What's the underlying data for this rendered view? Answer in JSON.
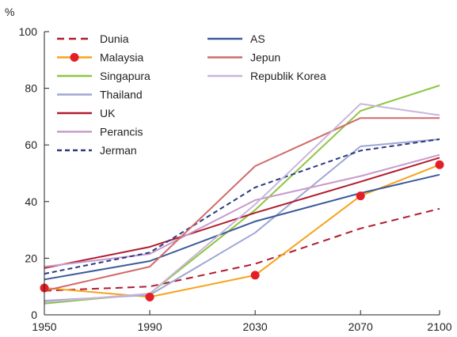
{
  "chart_data": {
    "type": "line",
    "ylabel": "%",
    "x": [
      1950,
      1990,
      2030,
      2070,
      2100
    ],
    "xlim": [
      1950,
      2100
    ],
    "ylim": [
      0,
      100
    ],
    "xticks": [
      "1950",
      "1990",
      "2030",
      "2070",
      "2100"
    ],
    "yticks": [
      "0",
      "20",
      "40",
      "60",
      "80",
      "100"
    ],
    "grid": false,
    "legend_position": "top-left, two columns",
    "series": [
      {
        "name": "Dunia",
        "values": [
          8.5,
          10,
          18,
          30.5,
          37.5
        ],
        "color": "#b01c2e",
        "style": "dashed",
        "markers": false
      },
      {
        "name": "Malaysia",
        "values": [
          9.5,
          6.3,
          14,
          42,
          53
        ],
        "color": "#f7a21b",
        "style": "solid",
        "markers": true,
        "marker_color": "#e41e26"
      },
      {
        "name": "Singapura",
        "values": [
          4,
          7.5,
          37,
          72,
          81
        ],
        "color": "#8dc63f",
        "style": "solid",
        "markers": false
      },
      {
        "name": "Thailand",
        "values": [
          5,
          7,
          29,
          59.5,
          62
        ],
        "color": "#9ea6d3",
        "style": "solid",
        "markers": false
      },
      {
        "name": "UK",
        "values": [
          16.5,
          24,
          36,
          47,
          55.5
        ],
        "color": "#b01c2e",
        "style": "solid",
        "markers": false
      },
      {
        "name": "Perancis",
        "values": [
          17,
          21.5,
          40.5,
          49,
          56.5
        ],
        "color": "#c79acb",
        "style": "solid",
        "markers": false
      },
      {
        "name": "Jerman",
        "values": [
          14.5,
          22,
          45,
          58,
          62
        ],
        "color": "#2b3a7e",
        "style": "dashed",
        "markers": false
      },
      {
        "name": "AS",
        "values": [
          12.5,
          19,
          33,
          43,
          49.5
        ],
        "color": "#3c5a9a",
        "style": "solid",
        "markers": false
      },
      {
        "name": "Jepun",
        "values": [
          8.5,
          17,
          52.5,
          69.5,
          69.5
        ],
        "color": "#d16b6b",
        "style": "solid",
        "markers": false
      },
      {
        "name": "Republik Korea",
        "values": [
          4.5,
          7.5,
          39,
          74.5,
          70.5
        ],
        "color": "#c9b5dd",
        "style": "solid",
        "markers": false
      }
    ],
    "legend_order": [
      "Dunia",
      "Malaysia",
      "Singapura",
      "Thailand",
      "UK",
      "Perancis",
      "Jerman",
      "AS",
      "Jepun",
      "Republik Korea"
    ]
  }
}
